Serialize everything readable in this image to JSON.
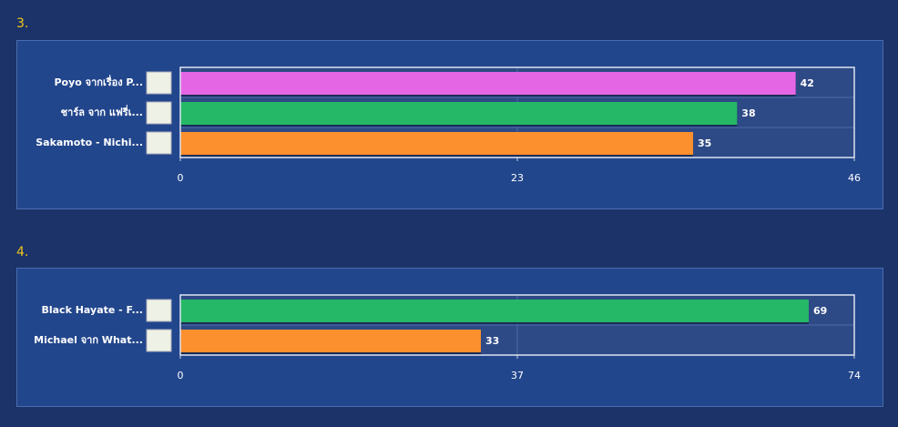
{
  "chart_data": [
    {
      "type": "bar",
      "orientation": "horizontal",
      "title": "3.",
      "categories": [
        "Poyo จากเรื่อง P...",
        "ชาร์ล จาก แฟรี่เ...",
        "Sakamoto - Nichi..."
      ],
      "values": [
        42,
        38,
        35
      ],
      "colors": [
        "#e566e5",
        "#25b866",
        "#fc8f2e"
      ],
      "xlim": [
        0,
        46
      ],
      "xticks": [
        0,
        23,
        46
      ],
      "grid": true
    },
    {
      "type": "bar",
      "orientation": "horizontal",
      "title": "4.",
      "categories": [
        "Black Hayate - F...",
        "Michael จาก What..."
      ],
      "values": [
        69,
        33
      ],
      "colors": [
        "#25b866",
        "#fc8f2e"
      ],
      "xlim": [
        0,
        74
      ],
      "xticks": [
        0,
        37,
        74
      ],
      "grid": true
    }
  ]
}
